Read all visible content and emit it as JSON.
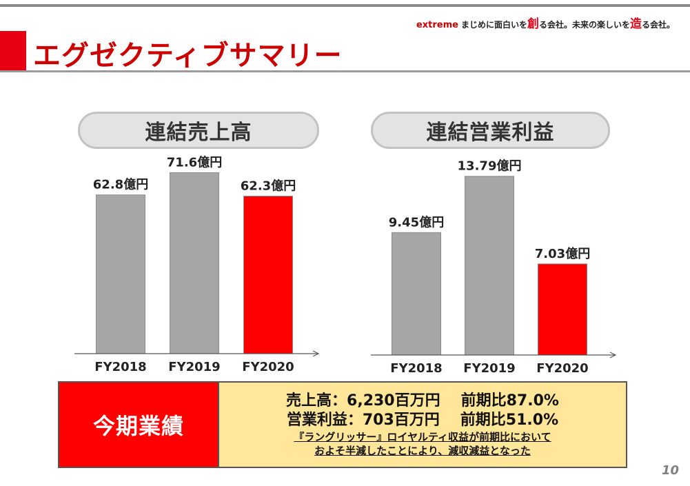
{
  "header": {
    "brand": "extreme",
    "tagline_part1": "まじめに面白いを",
    "tagline_big1": "創",
    "tagline_part2": "る会社。未来の楽しいを",
    "tagline_big2": "造",
    "tagline_part3": "る会社。"
  },
  "page_title": "エグゼクティブサマリー",
  "colors": {
    "accent": "#e60012",
    "bar_gray": "#a6a6a6",
    "bar_highlight": "#ff0000",
    "summary_bg": "#ffe699"
  },
  "chart_data": [
    {
      "type": "bar",
      "title": "連結売上高",
      "categories": [
        "FY2018",
        "FY2019",
        "FY2020"
      ],
      "values": [
        62.8,
        71.6,
        62.3
      ],
      "value_labels": [
        "62.8億円",
        "71.6億円",
        "62.3億円"
      ],
      "unit": "億円",
      "highlight_index": 2,
      "ylim": [
        0,
        80
      ],
      "grid": false
    },
    {
      "type": "bar",
      "title": "連結営業利益",
      "categories": [
        "FY2018",
        "FY2019",
        "FY2020"
      ],
      "values": [
        9.45,
        13.79,
        7.03
      ],
      "value_labels": [
        "9.45億円",
        "13.79億円",
        "7.03億円"
      ],
      "unit": "億円",
      "highlight_index": 2,
      "ylim": [
        0,
        16
      ],
      "grid": false
    }
  ],
  "summary": {
    "label": "今期業績",
    "line1_left": "売上高：6,230百万円",
    "line1_right": "前期比87.0%",
    "line2_left": "営業利益：703百万円",
    "line2_right": "前期比51.0%",
    "note1": "『ラングリッサー』ロイヤルティ収益が前期比において",
    "note2": "およそ半減したことにより、減収減益となった"
  },
  "page_number": "10"
}
